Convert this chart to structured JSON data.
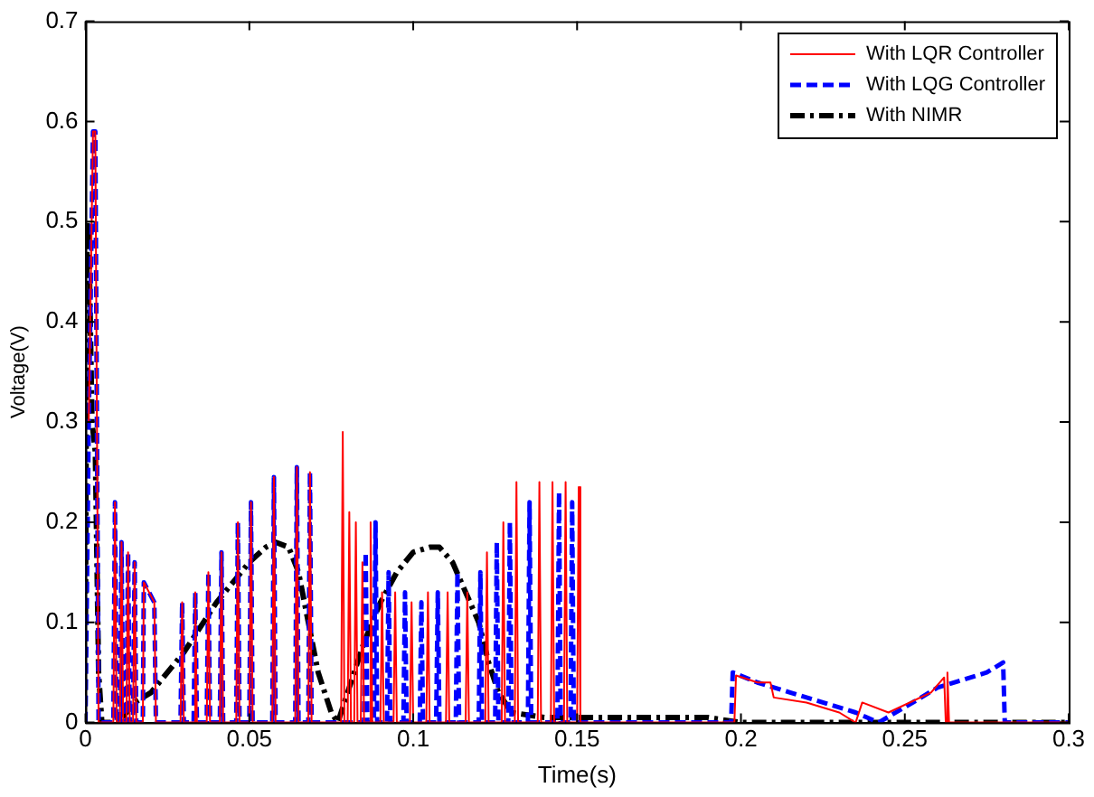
{
  "chart_data": {
    "type": "line",
    "xlabel": "Time(s)",
    "ylabel": "Voltage(V)",
    "xlim": [
      0,
      0.3
    ],
    "xticks": [
      0,
      0.05,
      0.1,
      0.15,
      0.2,
      0.25,
      0.3
    ],
    "ylim": [
      0,
      0.7
    ],
    "yticks": [
      0,
      0.1,
      0.2,
      0.3,
      0.4,
      0.5,
      0.6,
      0.7
    ],
    "grid": false,
    "legend": "top right",
    "marker": "none",
    "series": [
      {
        "name": "With LQR Controller",
        "color": "#ff0000",
        "line_style": "solid",
        "x": [
          0.001,
          0.0023,
          0.003,
          0.004,
          0.0085,
          0.009,
          0.0095,
          0.0105,
          0.011,
          0.0115,
          0.0125,
          0.013,
          0.0135,
          0.0145,
          0.015,
          0.0155,
          0.0175,
          0.0178,
          0.021,
          0.0215,
          0.029,
          0.0295,
          0.03,
          0.033,
          0.0335,
          0.034,
          0.037,
          0.0375,
          0.038,
          0.041,
          0.0415,
          0.042,
          0.046,
          0.0465,
          0.047,
          0.05,
          0.0505,
          0.051,
          0.057,
          0.0575,
          0.058,
          0.064,
          0.0645,
          0.065,
          0.068,
          0.0685,
          0.069,
          0.078,
          0.0785,
          0.079,
          0.08,
          0.0805,
          0.081,
          0.082,
          0.0825,
          0.083,
          0.084,
          0.0845,
          0.085,
          0.0865,
          0.087,
          0.0875,
          0.09,
          0.0905,
          0.091,
          0.094,
          0.0945,
          0.095,
          0.099,
          0.0995,
          0.1,
          0.104,
          0.1045,
          0.105,
          0.11,
          0.1105,
          0.111,
          0.116,
          0.1165,
          0.117,
          0.122,
          0.1225,
          0.123,
          0.127,
          0.1275,
          0.128,
          0.131,
          0.1315,
          0.132,
          0.138,
          0.1385,
          0.139,
          0.142,
          0.1425,
          0.143,
          0.146,
          0.1465,
          0.147,
          0.15,
          0.1505,
          0.151,
          0.198,
          0.1985,
          0.205,
          0.209,
          0.21,
          0.22,
          0.23,
          0.235,
          0.237,
          0.245,
          0.258,
          0.262,
          0.2625,
          0.263,
          0.2635,
          0.3
        ],
        "values": [
          0.3,
          0.59,
          0.59,
          0,
          0,
          0.22,
          0,
          0,
          0.18,
          0,
          0,
          0.17,
          0,
          0,
          0.16,
          0,
          0,
          0.14,
          0.12,
          0,
          0,
          0.12,
          0,
          0,
          0.13,
          0,
          0,
          0.15,
          0,
          0,
          0.17,
          0,
          0,
          0.2,
          0,
          0,
          0.22,
          0,
          0,
          0.245,
          0,
          0,
          0.255,
          0,
          0,
          0.25,
          0,
          0,
          0.29,
          0,
          0,
          0.21,
          0,
          0,
          0.2,
          0,
          0,
          0.16,
          0,
          0,
          0.2,
          0,
          0,
          0.13,
          0,
          0,
          0.13,
          0,
          0,
          0.12,
          0,
          0,
          0.13,
          0,
          0,
          0.13,
          0,
          0,
          0.13,
          0,
          0,
          0.17,
          0,
          0,
          0.2,
          0,
          0,
          0.24,
          0,
          0,
          0.24,
          0,
          0,
          0.24,
          0,
          0,
          0.24,
          0,
          0,
          0.235,
          0,
          0,
          0.047,
          0.04,
          0.04,
          0.025,
          0.02,
          0.01,
          0,
          0.02,
          0.01,
          0.03,
          0.045,
          0,
          0.05,
          0,
          0
        ]
      },
      {
        "name": "With LQG Controller",
        "color": "#0000ff",
        "line_style": "dashed",
        "x": [
          0,
          0.001,
          0.0023,
          0.003,
          0.004,
          0.0085,
          0.009,
          0.0095,
          0.0105,
          0.011,
          0.0115,
          0.0125,
          0.013,
          0.0135,
          0.0145,
          0.015,
          0.0155,
          0.0175,
          0.0178,
          0.021,
          0.0215,
          0.029,
          0.0295,
          0.03,
          0.033,
          0.0335,
          0.034,
          0.037,
          0.0375,
          0.038,
          0.041,
          0.0415,
          0.042,
          0.046,
          0.0465,
          0.047,
          0.05,
          0.0505,
          0.051,
          0.057,
          0.0575,
          0.058,
          0.064,
          0.0645,
          0.065,
          0.068,
          0.0685,
          0.069,
          0.085,
          0.0855,
          0.086,
          0.088,
          0.0885,
          0.089,
          0.092,
          0.0925,
          0.093,
          0.097,
          0.0975,
          0.098,
          0.102,
          0.1025,
          0.103,
          0.107,
          0.1075,
          0.108,
          0.113,
          0.1135,
          0.114,
          0.12,
          0.1205,
          0.121,
          0.125,
          0.1255,
          0.126,
          0.129,
          0.1295,
          0.13,
          0.135,
          0.1355,
          0.136,
          0.144,
          0.1445,
          0.145,
          0.148,
          0.1485,
          0.149,
          0.197,
          0.1975,
          0.205,
          0.215,
          0.225,
          0.235,
          0.242,
          0.255,
          0.26,
          0.275,
          0.28,
          0.2805,
          0.3
        ],
        "values": [
          0,
          0.3,
          0.59,
          0.59,
          0,
          0,
          0.22,
          0,
          0,
          0.18,
          0,
          0,
          0.17,
          0,
          0,
          0.16,
          0,
          0,
          0.14,
          0.12,
          0,
          0,
          0.12,
          0,
          0,
          0.13,
          0,
          0,
          0.15,
          0,
          0,
          0.17,
          0,
          0,
          0.2,
          0,
          0,
          0.22,
          0,
          0,
          0.245,
          0,
          0,
          0.255,
          0,
          0,
          0.25,
          0,
          0,
          0.17,
          0,
          0,
          0.2,
          0,
          0,
          0.15,
          0,
          0,
          0.13,
          0,
          0,
          0.12,
          0,
          0,
          0.13,
          0,
          0,
          0.15,
          0,
          0,
          0.15,
          0,
          0,
          0.18,
          0,
          0,
          0.2,
          0,
          0,
          0.22,
          0,
          0,
          0.23,
          0,
          0,
          0.22,
          0,
          0,
          0.05,
          0.04,
          0.03,
          0.02,
          0.01,
          0,
          0.025,
          0.035,
          0.05,
          0.06,
          0,
          0
        ]
      },
      {
        "name": "With NIMR",
        "color": "#000000",
        "line_style": "dashdot",
        "x": [
          0,
          0.0005,
          0.001,
          0.002,
          0.003,
          0.004,
          0.005,
          0.01,
          0.015,
          0.02,
          0.03,
          0.04,
          0.05,
          0.055,
          0.058,
          0.062,
          0.065,
          0.068,
          0.071,
          0.075,
          0.077,
          0.08,
          0.085,
          0.09,
          0.095,
          0.1,
          0.105,
          0.108,
          0.112,
          0.116,
          0.12,
          0.123,
          0.126,
          0.13,
          0.14,
          0.19,
          0.2,
          0.3
        ],
        "values": [
          0.1,
          0.5,
          0.49,
          0.3,
          0.27,
          0.05,
          0,
          0,
          0.02,
          0.03,
          0.07,
          0.12,
          0.16,
          0.175,
          0.18,
          0.175,
          0.15,
          0.1,
          0.05,
          0.01,
          0,
          0.03,
          0.08,
          0.12,
          0.15,
          0.17,
          0.175,
          0.175,
          0.16,
          0.13,
          0.1,
          0.06,
          0.03,
          0.01,
          0.005,
          0.005,
          0,
          0
        ]
      }
    ]
  }
}
